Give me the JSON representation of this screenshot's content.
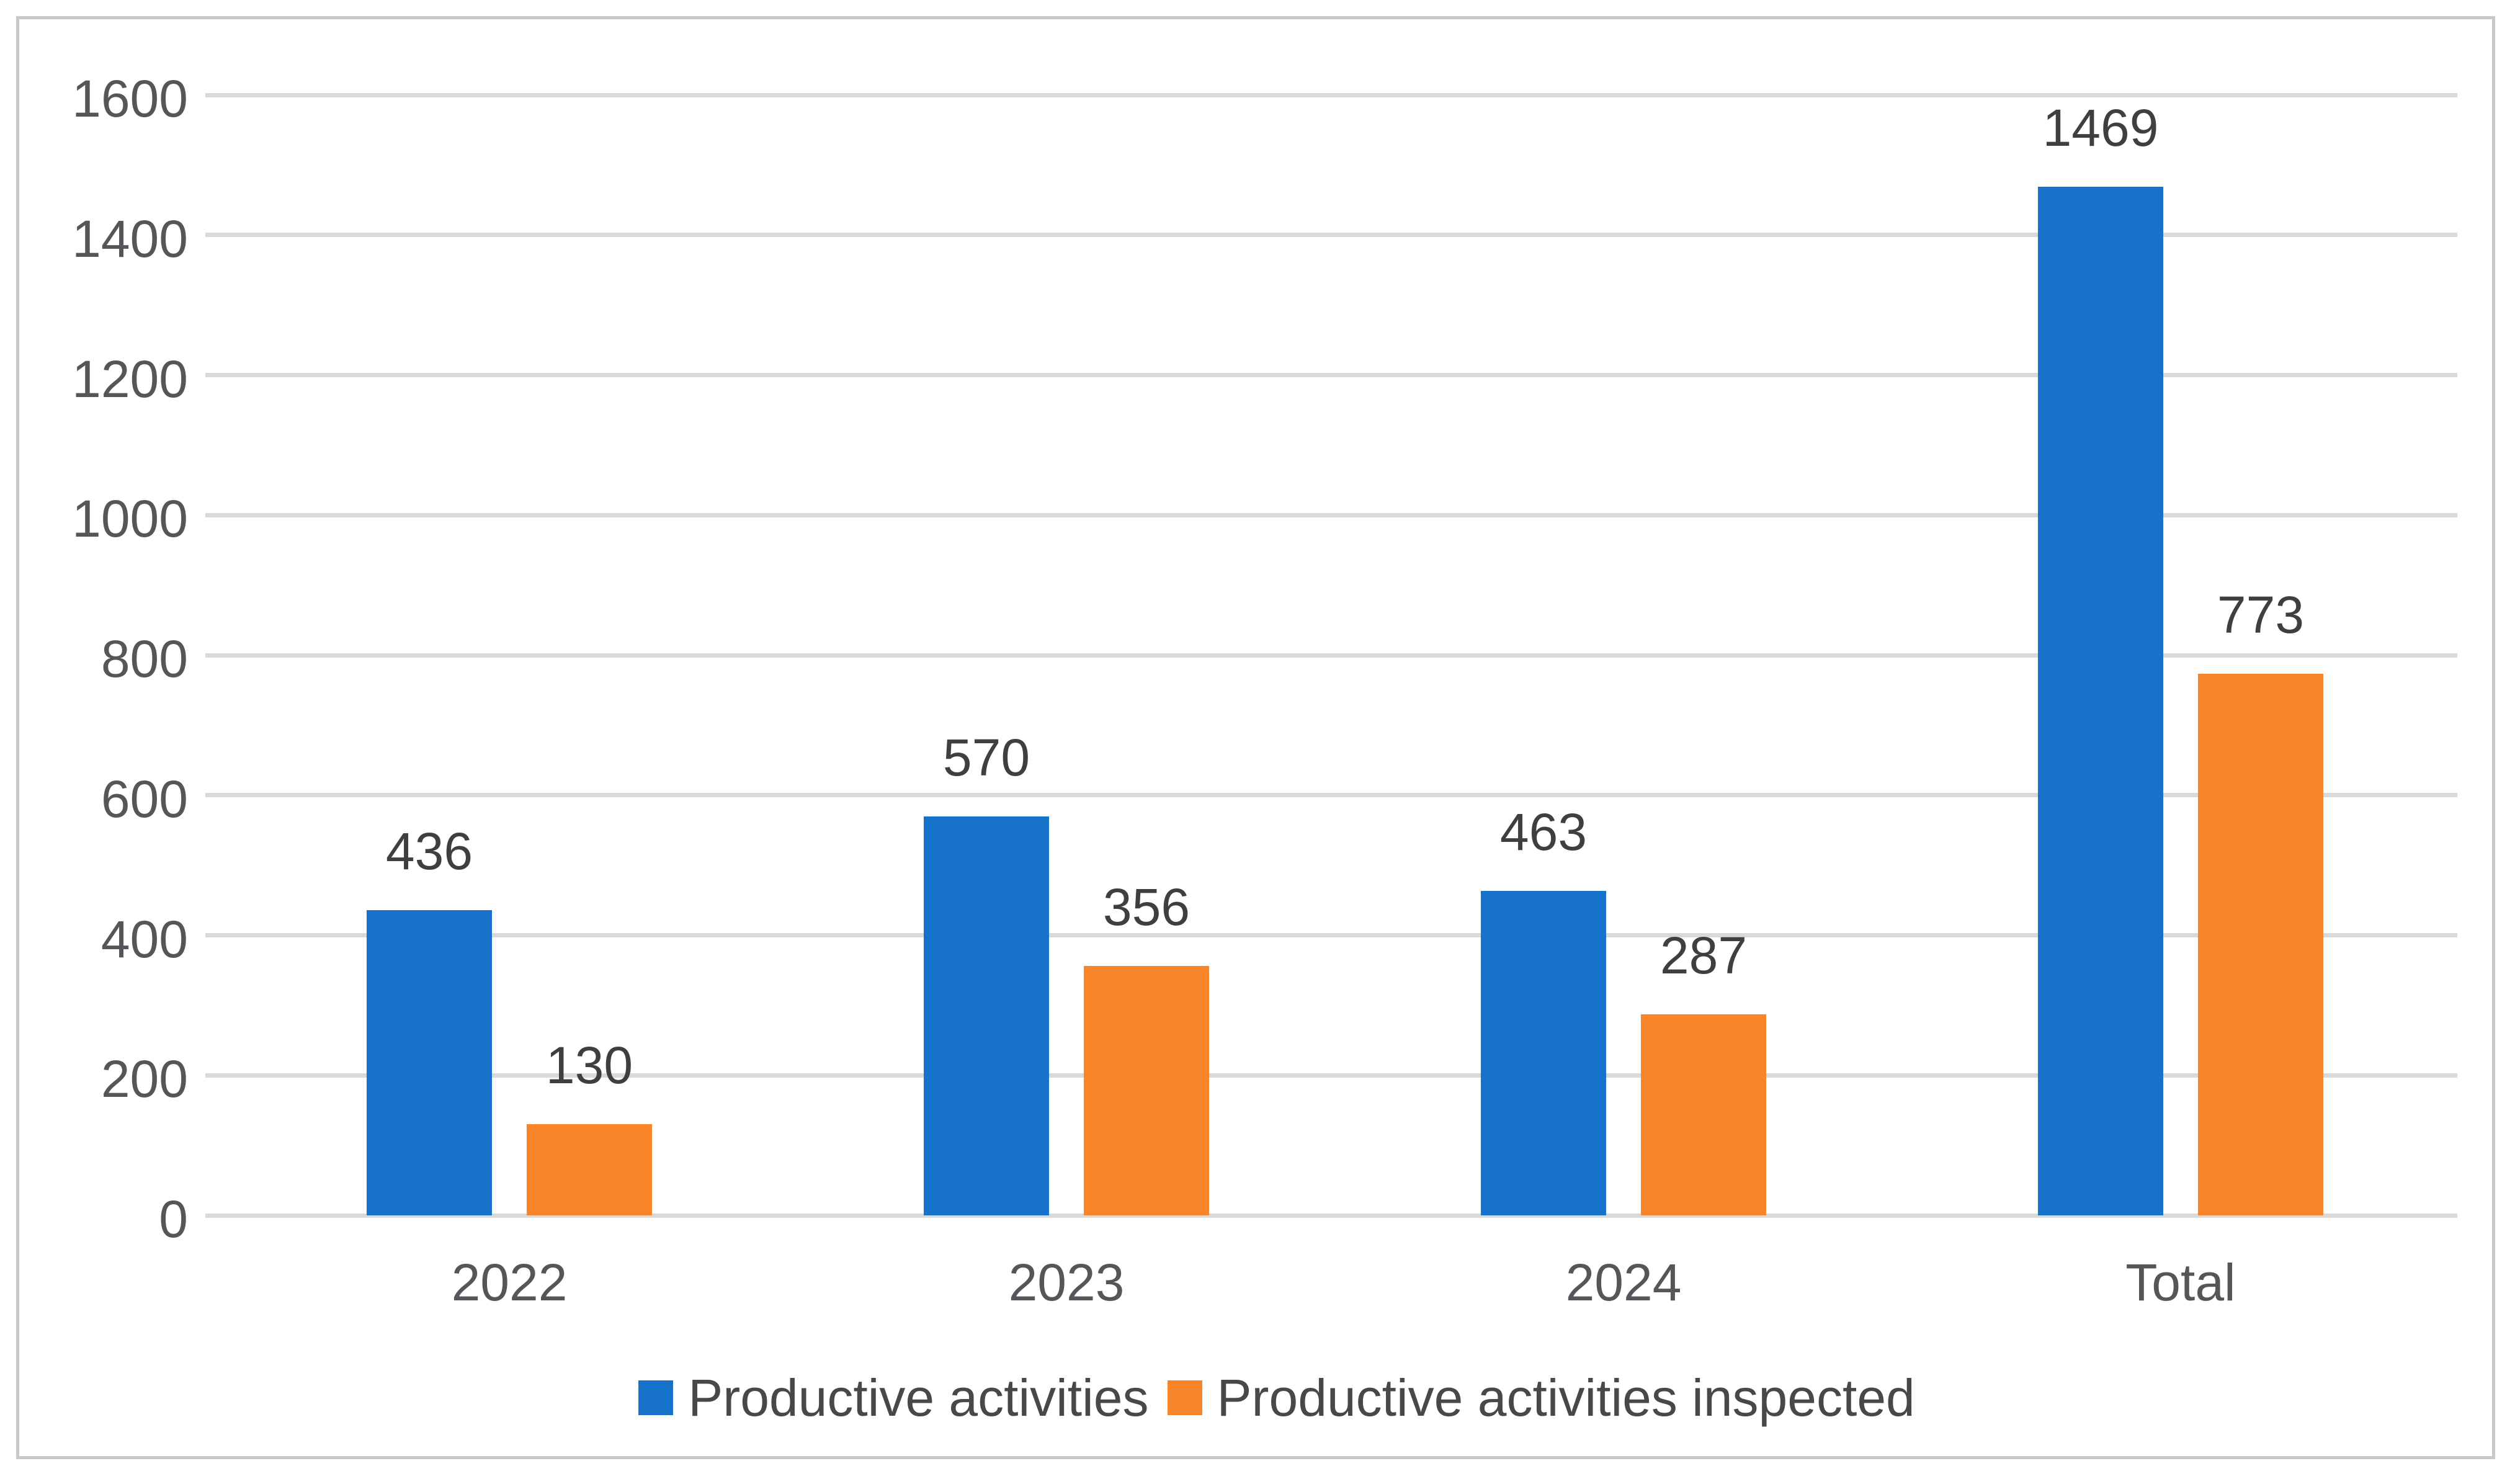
{
  "chart_data": {
    "type": "bar",
    "categories": [
      "2022",
      "2023",
      "2024",
      "Total"
    ],
    "series": [
      {
        "name": "Productive activities",
        "color": "#1673C9",
        "values": [
          436,
          570,
          463,
          1469
        ]
      },
      {
        "name": "Productive activities inspected",
        "color": "#F9852B",
        "values": [
          130,
          356,
          287,
          773
        ]
      }
    ],
    "title": "",
    "xlabel": "",
    "ylabel": "",
    "ylim": [
      0,
      1600
    ],
    "yticks": [
      0,
      200,
      400,
      600,
      800,
      1000,
      1200,
      1400,
      1600
    ],
    "grid": true,
    "data_labels": [
      [
        "436",
        "570",
        "463",
        "1469"
      ],
      [
        "130",
        "356",
        "287",
        "773"
      ]
    ],
    "legend_position": "bottom",
    "legend_labels": [
      "Productive activities",
      "Productive activities inspected"
    ]
  },
  "colors": {
    "background": "#FFFFFF",
    "frame_border": "#C9C9C9",
    "gridline": "#D9D9D9",
    "tick_label": "#56565A",
    "category_label": "#56565A",
    "value_label": "#3F3F3F",
    "legend_text": "#48484A",
    "series_blue": "#1673C9",
    "series_orange": "#F9852B"
  }
}
